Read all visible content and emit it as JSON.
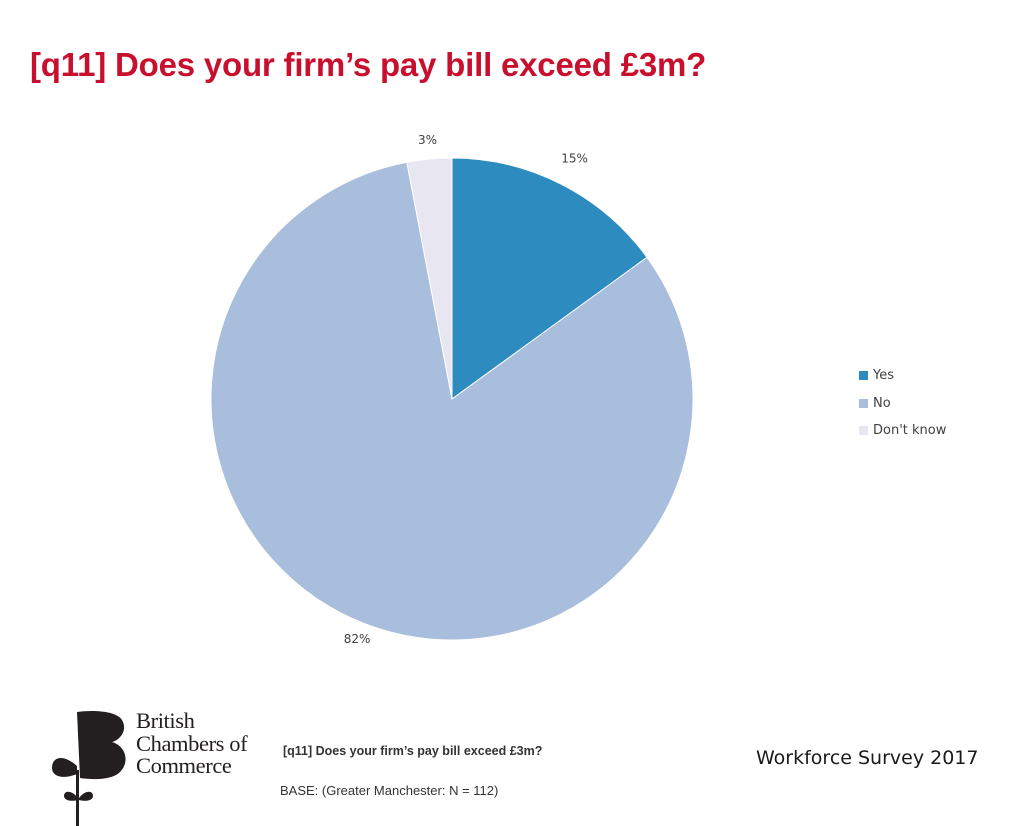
{
  "page": {
    "title": "[q11] Does your firm’s pay bill exceed £3m?"
  },
  "chart_data": {
    "type": "pie",
    "title": "",
    "categories": [
      "Yes",
      "No",
      "Don't know"
    ],
    "values": [
      15,
      82,
      3
    ],
    "labels": [
      "15%",
      "82%",
      "3%"
    ],
    "colors": [
      "#2e8bc0",
      "#a9bedc",
      "#e8e6f1"
    ],
    "start_angle": "12 o'clock",
    "direction": "clockwise",
    "legend_position": "right"
  },
  "legend": {
    "items": [
      {
        "label": "Yes",
        "color": "#2e8bc0"
      },
      {
        "label": "No",
        "color": "#a9bedc"
      },
      {
        "label": "Don't know",
        "color": "#e8e6f1"
      }
    ]
  },
  "logo": {
    "lines": [
      "British",
      "Chambers of",
      "Commerce"
    ]
  },
  "footer": {
    "question": "[q11] Does your firm’s pay bill exceed £3m?",
    "base": "BASE: (Greater Manchester: N = 112)",
    "survey": "Workforce Survey 2017"
  }
}
